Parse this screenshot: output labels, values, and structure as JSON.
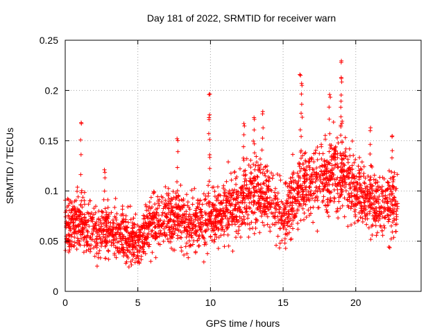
{
  "chart_data": {
    "type": "scatter",
    "title": "Day 181 of 2022, SRMTID for receiver warn",
    "xlabel": "GPS time / hours",
    "ylabel": "SRMTID / TECUs",
    "xlim": [
      0,
      24.5
    ],
    "ylim": [
      0,
      0.25
    ],
    "xticks": [
      0,
      5,
      10,
      15,
      20
    ],
    "xtick_labels": [
      "0",
      "5",
      "10",
      "15",
      "20"
    ],
    "yticks": [
      0,
      0.05,
      0.1,
      0.15,
      0.2,
      0.25
    ],
    "ytick_labels": [
      "0",
      "0.05",
      "0.1",
      "0.15",
      "0.2",
      "0.25"
    ],
    "grid": true,
    "marker": "plus",
    "color": "#ff0000",
    "x_range_observed": [
      0,
      22.9
    ],
    "trend": [
      {
        "x": 0,
        "y": 0.065
      },
      {
        "x": 1,
        "y": 0.07
      },
      {
        "x": 2,
        "y": 0.062
      },
      {
        "x": 3,
        "y": 0.06
      },
      {
        "x": 4,
        "y": 0.055
      },
      {
        "x": 5,
        "y": 0.05
      },
      {
        "x": 6,
        "y": 0.07
      },
      {
        "x": 7,
        "y": 0.075
      },
      {
        "x": 8,
        "y": 0.07
      },
      {
        "x": 9,
        "y": 0.065
      },
      {
        "x": 10,
        "y": 0.07
      },
      {
        "x": 11,
        "y": 0.08
      },
      {
        "x": 12,
        "y": 0.09
      },
      {
        "x": 13,
        "y": 0.1
      },
      {
        "x": 14,
        "y": 0.095
      },
      {
        "x": 15,
        "y": 0.075
      },
      {
        "x": 16,
        "y": 0.1
      },
      {
        "x": 17,
        "y": 0.11
      },
      {
        "x": 18,
        "y": 0.115
      },
      {
        "x": 19,
        "y": 0.12
      },
      {
        "x": 20,
        "y": 0.1
      },
      {
        "x": 21,
        "y": 0.09
      },
      {
        "x": 22,
        "y": 0.085
      },
      {
        "x": 22.9,
        "y": 0.085
      }
    ],
    "spikes": [
      {
        "x": 1.1,
        "y": 0.168
      },
      {
        "x": 2.7,
        "y": 0.121
      },
      {
        "x": 9.9,
        "y": 0.196
      },
      {
        "x": 9.9,
        "y": 0.173
      },
      {
        "x": 12.3,
        "y": 0.167
      },
      {
        "x": 13.0,
        "y": 0.173
      },
      {
        "x": 13.6,
        "y": 0.179
      },
      {
        "x": 16.2,
        "y": 0.215
      },
      {
        "x": 16.3,
        "y": 0.205
      },
      {
        "x": 18.2,
        "y": 0.196
      },
      {
        "x": 19.0,
        "y": 0.228
      },
      {
        "x": 19.0,
        "y": 0.213
      },
      {
        "x": 21.0,
        "y": 0.16
      },
      {
        "x": 22.5,
        "y": 0.154
      },
      {
        "x": 7.7,
        "y": 0.152
      }
    ],
    "n_points": 2600
  }
}
